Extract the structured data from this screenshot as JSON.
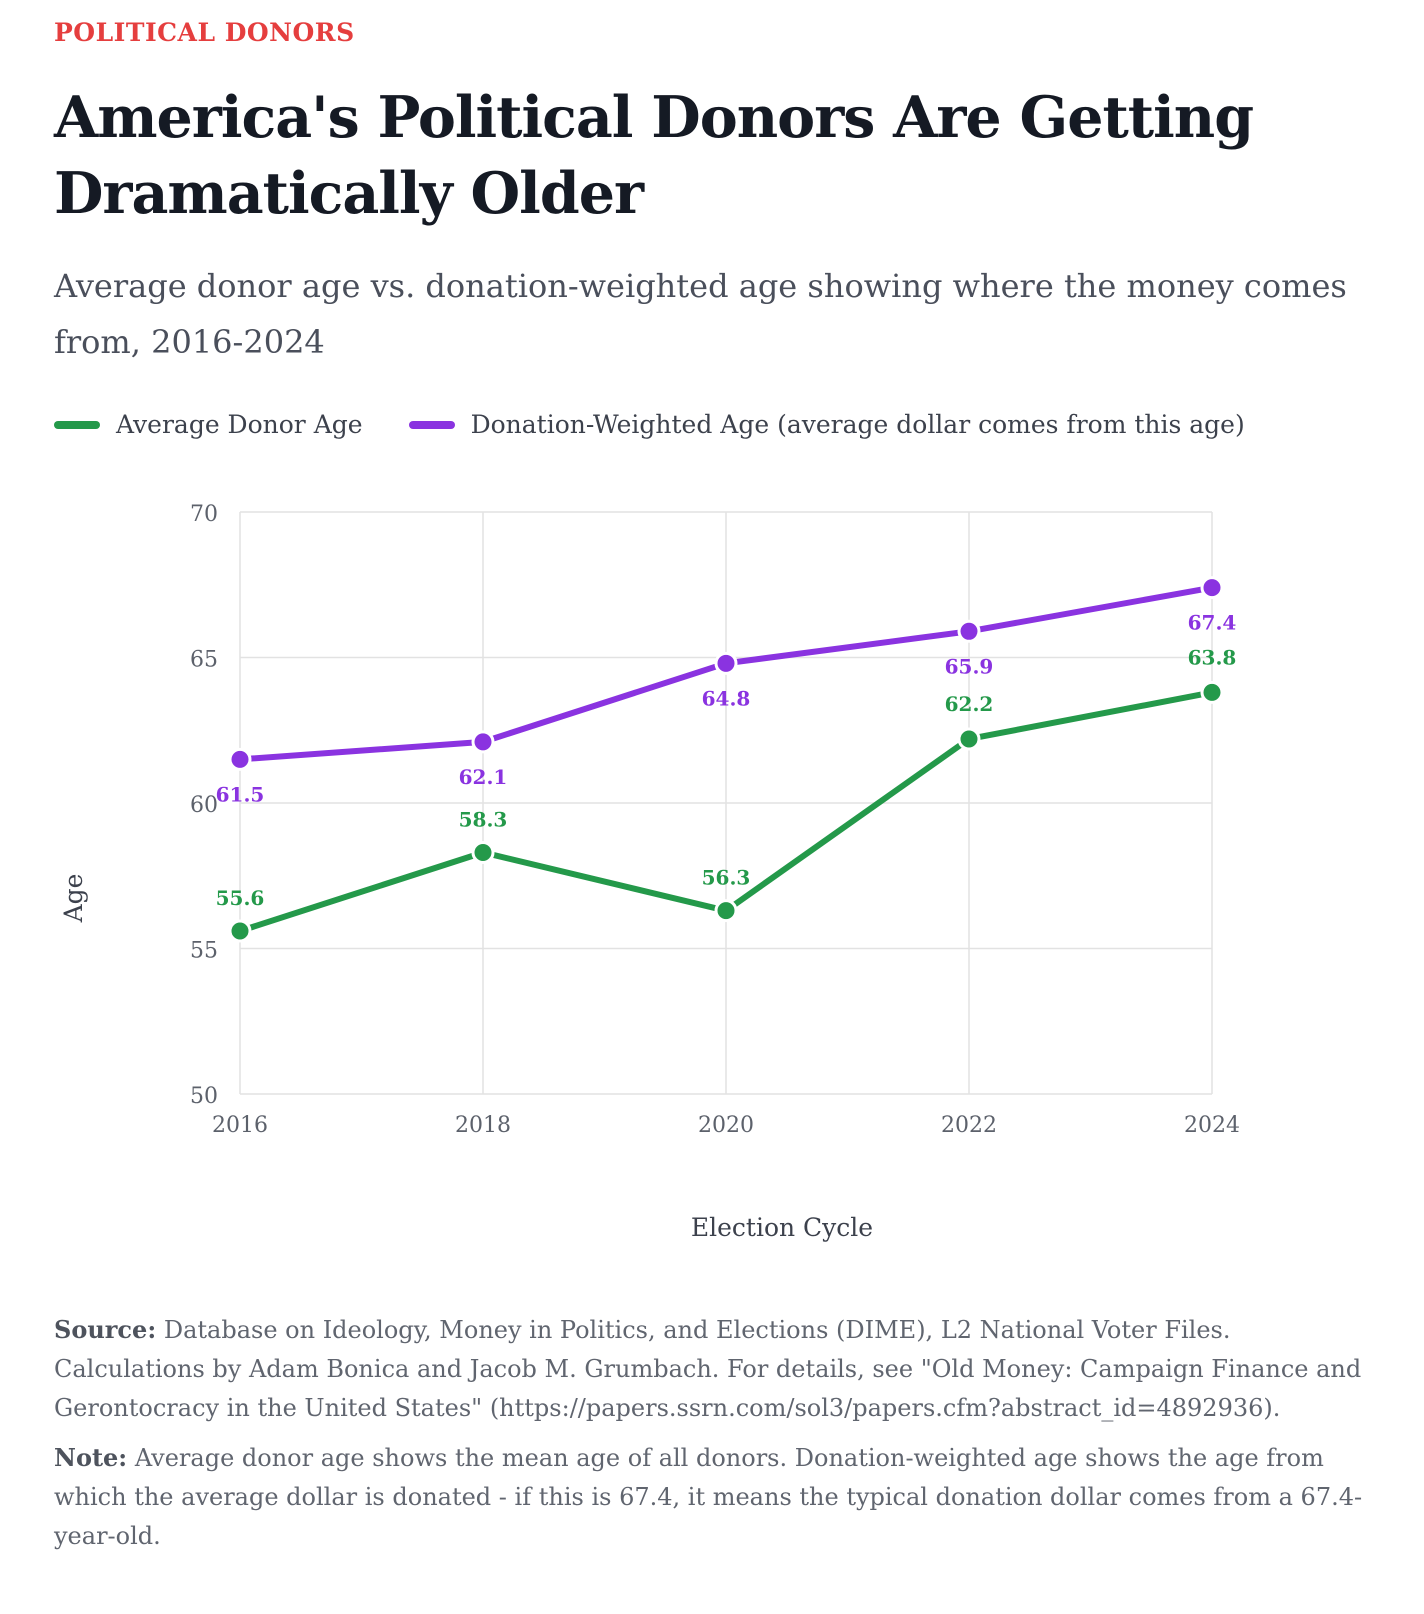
{
  "kicker": "POLITICAL DONORS",
  "title": "America's Political Donors Are Getting Dramatically Older",
  "subtitle": "Average donor age vs. donation-weighted age showing where the money comes from, 2016-2024",
  "colors": {
    "kicker": "#e53e3e",
    "green": "#24994a",
    "purple": "#8a33e0",
    "grid": "#e2e2e2"
  },
  "footer": {
    "source_label": "Source:",
    "source_text": "Database on Ideology, Money in Politics, and Elections (DIME), L2 National Voter Files. Calculations by Adam Bonica and Jacob M. Grumbach. For details, see \"Old Money: Campaign Finance and Gerontocracy in the United States\" (https://papers.ssrn.com/sol3/papers.cfm?abstract_id=4892936).",
    "note_label": "Note:",
    "note_text": "Average donor age shows the mean age of all donors. Donation-weighted age shows the age from which the average dollar is donated - if this is 67.4, it means the typical donation dollar comes from a 67.4-year-old."
  },
  "chart_data": {
    "type": "line",
    "x": [
      "2016",
      "2018",
      "2020",
      "2022",
      "2024"
    ],
    "series": [
      {
        "name": "Average Donor Age",
        "color": "#24994a",
        "values": [
          55.6,
          58.3,
          56.3,
          62.2,
          63.8
        ],
        "labels": [
          "55.6",
          "58.3",
          "56.3",
          "62.2",
          "63.8"
        ]
      },
      {
        "name": "Donation-Weighted Age (average dollar comes from this age)",
        "color": "#8a33e0",
        "values": [
          61.5,
          62.1,
          64.8,
          65.9,
          67.4
        ],
        "labels": [
          "61.5",
          "62.1",
          "64.8",
          "65.9",
          "67.4"
        ]
      }
    ],
    "xlabel": "Election Cycle",
    "ylabel": "Age",
    "ylim": [
      50,
      70
    ],
    "yticks": [
      "50",
      "55",
      "60",
      "65",
      "70"
    ],
    "grid": true,
    "legend": "top-left"
  }
}
